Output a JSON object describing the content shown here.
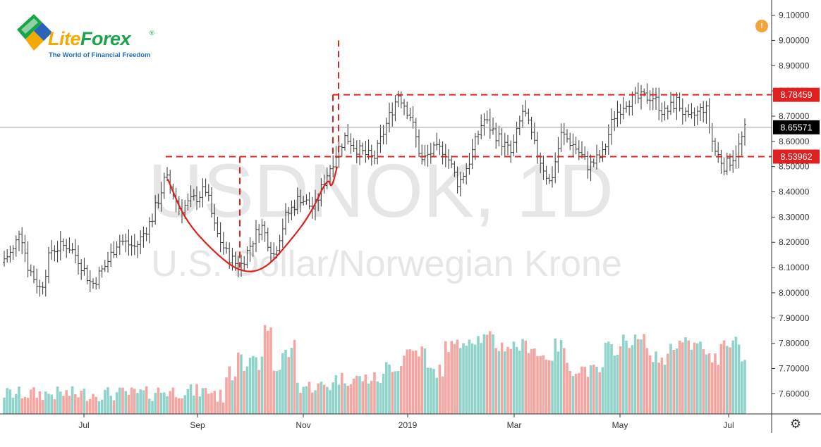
{
  "logo": {
    "brand_part1": "Lite",
    "brand_part2": "Forex",
    "registered": "®",
    "tagline": "The World of Financial Freedom"
  },
  "watermark": {
    "symbol": "USDNOK, 1D",
    "description": "U.S. Dollar/Norwegian Krone"
  },
  "icons": {
    "alert": "alert-icon",
    "settings": "gear-icon"
  },
  "colors": {
    "pattern": "#e02020",
    "volume_up": "#8fd3cb",
    "volume_down": "#f4a6a3",
    "current_price_label": "#000000"
  },
  "chart_data": {
    "type": "ohlc-bar",
    "symbol": "USDNOK",
    "interval": "1D",
    "title": "USDNOK, 1D",
    "subtitle": "U.S. Dollar/Norwegian Krone",
    "x_labels": [
      "Jul",
      "Sep",
      "Nov",
      "2019",
      "Mar",
      "May",
      "Jul"
    ],
    "y_ticks": [
      "9.10000",
      "9.00000",
      "8.90000",
      "8.80000",
      "8.70000",
      "8.60000",
      "8.50000",
      "8.40000",
      "8.30000",
      "8.20000",
      "8.10000",
      "8.00000",
      "7.90000",
      "7.80000",
      "7.70000",
      "7.60000"
    ],
    "ylim": [
      7.52,
      9.11
    ],
    "price_labels": [
      {
        "value": 8.78459,
        "text": "8.78459",
        "style": "red"
      },
      {
        "value": 8.65571,
        "text": "8.65571",
        "style": "black"
      },
      {
        "value": 8.53962,
        "text": "8.53962",
        "style": "red"
      }
    ],
    "price_path": [
      [
        0,
        8.12
      ],
      [
        20,
        8.17
      ],
      [
        28,
        8.26
      ],
      [
        40,
        8.1
      ],
      [
        58,
        8.01
      ],
      [
        72,
        8.17
      ],
      [
        96,
        8.19
      ],
      [
        110,
        8.14
      ],
      [
        130,
        8.03
      ],
      [
        150,
        8.11
      ],
      [
        168,
        8.21
      ],
      [
        192,
        8.18
      ],
      [
        215,
        8.29
      ],
      [
        235,
        8.46
      ],
      [
        255,
        8.33
      ],
      [
        275,
        8.37
      ],
      [
        292,
        8.41
      ],
      [
        305,
        8.25
      ],
      [
        322,
        8.15
      ],
      [
        340,
        8.1
      ],
      [
        355,
        8.19
      ],
      [
        370,
        8.27
      ],
      [
        388,
        8.15
      ],
      [
        405,
        8.3
      ],
      [
        425,
        8.38
      ],
      [
        445,
        8.33
      ],
      [
        462,
        8.46
      ],
      [
        478,
        8.56
      ],
      [
        490,
        8.62
      ],
      [
        510,
        8.56
      ],
      [
        530,
        8.53
      ],
      [
        548,
        8.67
      ],
      [
        565,
        8.79
      ],
      [
        582,
        8.7
      ],
      [
        598,
        8.52
      ],
      [
        612,
        8.56
      ],
      [
        630,
        8.57
      ],
      [
        650,
        8.43
      ],
      [
        665,
        8.52
      ],
      [
        685,
        8.69
      ],
      [
        705,
        8.62
      ],
      [
        725,
        8.55
      ],
      [
        742,
        8.73
      ],
      [
        758,
        8.58
      ],
      [
        780,
        8.43
      ],
      [
        796,
        8.63
      ],
      [
        815,
        8.58
      ],
      [
        835,
        8.5
      ],
      [
        855,
        8.55
      ],
      [
        870,
        8.7
      ],
      [
        888,
        8.76
      ],
      [
        905,
        8.77
      ],
      [
        925,
        8.78
      ],
      [
        942,
        8.71
      ],
      [
        960,
        8.76
      ],
      [
        975,
        8.68
      ],
      [
        1000,
        8.74
      ],
      [
        1012,
        8.57
      ],
      [
        1028,
        8.5
      ],
      [
        1045,
        8.56
      ],
      [
        1058,
        8.66
      ]
    ],
    "volume": {
      "hist_min": 7.52,
      "bands": [
        [
          0,
          7.6
        ],
        [
          220,
          7.61
        ],
        [
          305,
          7.59
        ],
        [
          318,
          7.68
        ],
        [
          335,
          7.78
        ],
        [
          345,
          7.72
        ],
        [
          375,
          7.86
        ],
        [
          385,
          7.7
        ],
        [
          400,
          7.76
        ],
        [
          415,
          7.83
        ],
        [
          420,
          7.63
        ],
        [
          470,
          7.66
        ],
        [
          545,
          7.71
        ],
        [
          570,
          7.77
        ],
        [
          605,
          7.69
        ],
        [
          630,
          7.79
        ],
        [
          655,
          7.82
        ],
        [
          700,
          7.79
        ],
        [
          760,
          7.75
        ],
        [
          785,
          7.79
        ],
        [
          800,
          7.7
        ],
        [
          830,
          7.69
        ],
        [
          855,
          7.78
        ],
        [
          880,
          7.81
        ],
        [
          920,
          7.74
        ],
        [
          950,
          7.8
        ],
        [
          975,
          7.79
        ],
        [
          1000,
          7.74
        ],
        [
          1020,
          7.81
        ],
        [
          1050,
          7.73
        ],
        [
          1058,
          7.58
        ]
      ]
    },
    "annotations": {
      "cup_curve": [
        [
          238,
          8.45
        ],
        [
          262,
          8.29
        ],
        [
          300,
          8.17
        ],
        [
          340,
          8.08
        ],
        [
          375,
          8.09
        ],
        [
          410,
          8.2
        ],
        [
          440,
          8.31
        ],
        [
          465,
          8.46
        ],
        [
          470,
          8.41
        ],
        [
          478,
          8.5
        ]
      ],
      "neckline": {
        "y": 8.53962,
        "x_from": 235,
        "x_to": 1094
      },
      "resistance": {
        "y": 8.78459,
        "x_from": 472,
        "x_to": 1094
      },
      "cup_depth": {
        "x": 340,
        "y_from": 8.53962,
        "y_to": 8.1
      },
      "target": {
        "x": 480,
        "y_from": 9.0,
        "y_to": 8.53962
      },
      "breakout": {
        "x": 472,
        "y_from": 8.78459,
        "y_to": 8.53962
      },
      "current_price": 8.65571
    }
  }
}
